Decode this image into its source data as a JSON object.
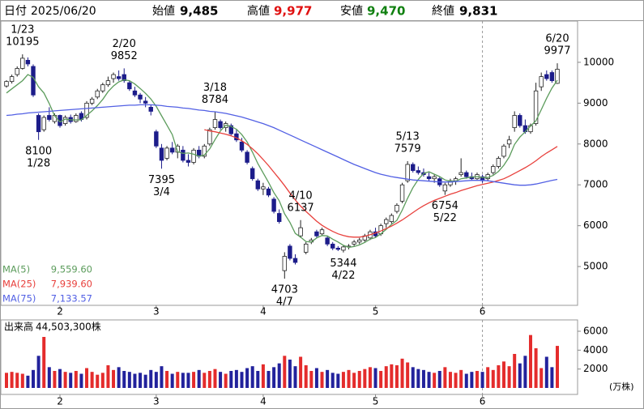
{
  "header": {
    "date_label": "日付",
    "date": "2025/06/20",
    "open_label": "始値",
    "open": "9,485",
    "high_label": "高値",
    "high": "9,977",
    "low_label": "安値",
    "low": "9,470",
    "close_label": "終値",
    "close": "9,831"
  },
  "chart_data": [
    {
      "type": "candlestick",
      "categories": [
        null,
        null,
        null,
        null,
        null,
        null,
        null,
        null,
        null,
        null,
        "2",
        null,
        null,
        null,
        null,
        null,
        null,
        null,
        null,
        null,
        null,
        null,
        null,
        null,
        null,
        null,
        null,
        null,
        "3",
        null,
        null,
        null,
        null,
        null,
        null,
        null,
        null,
        null,
        null,
        null,
        null,
        null,
        null,
        null,
        null,
        null,
        null,
        null,
        "4",
        null,
        null,
        null,
        null,
        null,
        null,
        null,
        null,
        null,
        null,
        null,
        null,
        null,
        null,
        null,
        null,
        null,
        null,
        null,
        null,
        "5",
        null,
        null,
        null,
        null,
        null,
        null,
        null,
        null,
        null,
        null,
        null,
        null,
        null,
        null,
        null,
        null,
        null,
        null,
        null,
        "6",
        null,
        null,
        null,
        null,
        null,
        null,
        null,
        null,
        null,
        null,
        null,
        null,
        null,
        null
      ],
      "open": [
        9420,
        9530,
        9700,
        9850,
        10050,
        9900,
        8700,
        8350,
        8700,
        8550,
        8700,
        8500,
        8650,
        8550,
        8750,
        8650,
        9000,
        9150,
        9300,
        9450,
        9600,
        9650,
        9700,
        9500,
        9300,
        9200,
        9050,
        8900,
        8300,
        7900,
        7650,
        7900,
        7800,
        7850,
        7600,
        7550,
        7850,
        7700,
        8000,
        8400,
        8550,
        8400,
        8450,
        8250,
        8050,
        7800,
        7400,
        7100,
        6900,
        6900,
        6650,
        6300,
        4900,
        5500,
        5200,
        5750,
        5350,
        5600,
        5850,
        5800,
        5700,
        5550,
        5450,
        5400,
        5480,
        5550,
        5600,
        5650,
        5700,
        5850,
        5800,
        6050,
        6100,
        6350,
        6600,
        7100,
        7500,
        7350,
        7300,
        7200,
        7150,
        7150,
        6850,
        7000,
        7100,
        7250,
        7300,
        7200,
        7150,
        7200,
        7150,
        7300,
        7450,
        7700,
        8000,
        8400,
        8700,
        8450,
        8300,
        8500,
        9400,
        9700,
        9750,
        9485
      ],
      "high": [
        9560,
        9700,
        9900,
        10195,
        10120,
        9950,
        8750,
        8700,
        8900,
        8750,
        8720,
        8700,
        8720,
        8750,
        8800,
        9050,
        9150,
        9350,
        9500,
        9650,
        9750,
        9800,
        9852,
        9550,
        9400,
        9250,
        9150,
        8950,
        8350,
        8000,
        7950,
        8050,
        8000,
        7950,
        7750,
        7900,
        7950,
        8000,
        8400,
        8784,
        8600,
        8550,
        8500,
        8350,
        8150,
        7850,
        7450,
        7150,
        7050,
        6950,
        6700,
        6400,
        5350,
        5550,
        5300,
        6137,
        5600,
        5700,
        5900,
        5950,
        5750,
        5600,
        5500,
        5520,
        5550,
        5650,
        5700,
        5800,
        5900,
        5950,
        6050,
        6200,
        6300,
        6550,
        7050,
        7579,
        7550,
        7450,
        7400,
        7300,
        7250,
        7200,
        7050,
        7150,
        7200,
        7650,
        7350,
        7300,
        7300,
        7250,
        7300,
        7500,
        7700,
        8000,
        8200,
        8800,
        8750,
        8600,
        8500,
        9500,
        9750,
        9800,
        9800,
        9977
      ],
      "low": [
        9380,
        9480,
        9650,
        9820,
        9900,
        9150,
        8100,
        8300,
        8550,
        8500,
        8400,
        8450,
        8500,
        8520,
        8550,
        8600,
        8950,
        9100,
        9250,
        9400,
        9500,
        9550,
        9500,
        9300,
        9150,
        9000,
        8900,
        8700,
        7900,
        7395,
        7600,
        7750,
        7650,
        7550,
        7450,
        7500,
        7650,
        7650,
        7950,
        8350,
        8350,
        8300,
        8200,
        8050,
        7800,
        7500,
        7100,
        6850,
        6750,
        6700,
        6300,
        6050,
        4703,
        5150,
        5050,
        5700,
        5300,
        5550,
        5700,
        5750,
        5500,
        5400,
        5380,
        5344,
        5420,
        5500,
        5550,
        5600,
        5650,
        5700,
        5750,
        5950,
        6050,
        6300,
        6550,
        7050,
        7300,
        7250,
        7200,
        7100,
        7050,
        6950,
        6754,
        6950,
        7000,
        7200,
        7150,
        7100,
        7100,
        7050,
        7100,
        7250,
        7400,
        7650,
        7900,
        8300,
        8400,
        8250,
        8250,
        8450,
        9300,
        9550,
        9500,
        9470
      ],
      "close": [
        9530,
        9650,
        9850,
        10100,
        9960,
        9200,
        8300,
        8650,
        8600,
        8700,
        8450,
        8650,
        8550,
        8700,
        8600,
        9000,
        9100,
        9300,
        9450,
        9550,
        9700,
        9600,
        9550,
        9350,
        9200,
        9100,
        9000,
        8800,
        7950,
        7600,
        7900,
        7800,
        7950,
        7600,
        7550,
        7850,
        7700,
        7950,
        8350,
        8600,
        8400,
        8500,
        8250,
        8100,
        7850,
        7550,
        7150,
        6900,
        6950,
        6750,
        6350,
        6100,
        5250,
        5200,
        5100,
        5950,
        5550,
        5650,
        5750,
        5900,
        5550,
        5450,
        5420,
        5480,
        5500,
        5600,
        5650,
        5750,
        5850,
        5750,
        6000,
        6150,
        6250,
        6500,
        7000,
        7500,
        7350,
        7300,
        7250,
        7150,
        7200,
        7000,
        7000,
        7100,
        7150,
        7300,
        7200,
        7150,
        7250,
        7100,
        7250,
        7450,
        7650,
        7950,
        8100,
        8700,
        8450,
        8300,
        8450,
        9300,
        9650,
        9600,
        9550,
        9831
      ],
      "up_color": "#ffffff",
      "down_color": "#1c1c8a",
      "outline_color": "#222222",
      "ylim": [
        4050,
        11010
      ],
      "yticks": [
        5000,
        6000,
        7000,
        8000,
        9000,
        10000
      ],
      "lines": [
        {
          "name": "MA(5)",
          "color": "#5c9c5c",
          "current": {
            "value": 9559.6,
            "label": "9,559.60"
          },
          "values": [
            9250,
            9350,
            9450,
            9550,
            9700,
            9630,
            9400,
            9250,
            8990,
            8690,
            8540,
            8610,
            8590,
            8590,
            8590,
            8700,
            8810,
            8940,
            9090,
            9280,
            9420,
            9520,
            9570,
            9550,
            9470,
            9360,
            9240,
            9100,
            8920,
            8690,
            8460,
            8230,
            7810,
            7770,
            7780,
            7750,
            7700,
            7730,
            7880,
            8110,
            8320,
            8460,
            8430,
            8360,
            8230,
            8050,
            7800,
            7520,
            7290,
            7060,
            6810,
            6610,
            6290,
            6080,
            5810,
            5720,
            5610,
            5600,
            5700,
            5760,
            5750,
            5670,
            5600,
            5520,
            5470,
            5490,
            5530,
            5590,
            5670,
            5710,
            5800,
            5910,
            6030,
            6130,
            6380,
            6670,
            6930,
            7130,
            7280,
            7320,
            7260,
            7200,
            7120,
            7090,
            7090,
            7150,
            7170,
            7190,
            7200,
            7180,
            7180,
            7230,
            7330,
            7480,
            7680,
            7990,
            8170,
            8300,
            8440,
            8570,
            8840,
            9120,
            9370,
            9559.6
          ]
        },
        {
          "name": "MA(25)",
          "color": "#e8403c",
          "current": {
            "value": 7939.6,
            "label": "7,939.60"
          },
          "values": [
            null,
            null,
            null,
            null,
            null,
            null,
            null,
            null,
            null,
            null,
            null,
            null,
            null,
            null,
            null,
            null,
            null,
            null,
            null,
            null,
            null,
            null,
            null,
            null,
            null,
            null,
            null,
            null,
            null,
            null,
            null,
            null,
            null,
            null,
            null,
            null,
            null,
            8350,
            8320,
            8300,
            8270,
            8240,
            8200,
            8150,
            8080,
            7990,
            7880,
            7760,
            7620,
            7470,
            7310,
            7150,
            6980,
            6800,
            6630,
            6480,
            6350,
            6230,
            6110,
            6010,
            5930,
            5860,
            5800,
            5760,
            5730,
            5720,
            5720,
            5740,
            5780,
            5820,
            5870,
            5930,
            5990,
            6060,
            6140,
            6230,
            6320,
            6410,
            6490,
            6560,
            6620,
            6670,
            6720,
            6770,
            6810,
            6860,
            6900,
            6940,
            6980,
            7010,
            7040,
            7070,
            7110,
            7150,
            7210,
            7280,
            7350,
            7420,
            7500,
            7590,
            7690,
            7780,
            7860,
            7939.6
          ]
        },
        {
          "name": "MA(75)",
          "color": "#5260e4",
          "current": {
            "value": 7133.57,
            "label": "7,133.57"
          },
          "values": [
            8700,
            8710,
            8730,
            8740,
            8760,
            8770,
            8780,
            8790,
            8800,
            8810,
            8820,
            8830,
            8840,
            8850,
            8860,
            8870,
            8880,
            8890,
            8900,
            8910,
            8920,
            8930,
            8940,
            8950,
            8950,
            8960,
            8960,
            8960,
            8950,
            8940,
            8920,
            8910,
            8900,
            8880,
            8870,
            8850,
            8830,
            8820,
            8800,
            8790,
            8770,
            8750,
            8720,
            8690,
            8660,
            8620,
            8580,
            8540,
            8500,
            8450,
            8400,
            8340,
            8280,
            8220,
            8160,
            8100,
            8040,
            7980,
            7920,
            7860,
            7800,
            7740,
            7680,
            7620,
            7560,
            7500,
            7450,
            7400,
            7350,
            7300,
            7260,
            7230,
            7200,
            7180,
            7160,
            7140,
            7120,
            7110,
            7100,
            7090,
            7080,
            7070,
            7070,
            7070,
            7080,
            7090,
            7100,
            7110,
            7110,
            7110,
            7100,
            7080,
            7060,
            7040,
            7020,
            7000,
            6990,
            6990,
            7000,
            7020,
            7050,
            7080,
            7110,
            7133.57
          ]
        }
      ],
      "annotations": [
        {
          "date": "1/23",
          "value": 10195
        },
        {
          "date": "1/28",
          "value": 8100
        },
        {
          "date": "2/20",
          "value": 9852
        },
        {
          "date": "3/4",
          "value": 7395
        },
        {
          "date": "3/18",
          "value": 8784
        },
        {
          "date": "4/7",
          "value": 4703
        },
        {
          "date": "4/10",
          "value": 6137
        },
        {
          "date": "4/22",
          "value": 5344
        },
        {
          "date": "5/13",
          "value": 7579
        },
        {
          "date": "5/22",
          "value": 6754
        },
        {
          "date": "6/20",
          "value": 9977
        }
      ]
    },
    {
      "type": "bar",
      "title": "出来高",
      "title_value": "44,503,300株",
      "unit": "(万株)",
      "up_color": "#e42c2c",
      "down_color": "#22229c",
      "values": [
        1600,
        1700,
        1600,
        1500,
        1300,
        1900,
        3400,
        5400,
        2200,
        1800,
        2000,
        1700,
        1600,
        1800,
        1500,
        2100,
        1700,
        1400,
        1600,
        2400,
        1900,
        2200,
        1800,
        1700,
        1500,
        1600,
        1400,
        1900,
        1700,
        2300,
        1800,
        1500,
        1700,
        1600,
        1600,
        1700,
        1900,
        1600,
        1800,
        2000,
        1700,
        1500,
        1800,
        1900,
        1700,
        2100,
        2300,
        1800,
        2500,
        1800,
        2200,
        2600,
        3400,
        3000,
        2300,
        3300,
        2400,
        1800,
        2100,
        1700,
        1900,
        1600,
        1500,
        1700,
        1900,
        1600,
        1800,
        2000,
        2200,
        2100,
        1800,
        2300,
        2500,
        2400,
        3100,
        2700,
        2200,
        2000,
        1900,
        1700,
        1600,
        1800,
        2200,
        1700,
        1600,
        1900,
        1500,
        1700,
        1800,
        1700,
        2200,
        1900,
        2400,
        2800,
        2300,
        3600,
        2600,
        3400,
        5600,
        4200,
        2100,
        3300,
        2200,
        4450.33
      ],
      "ylim": [
        0,
        7200
      ],
      "yticks": [
        2000,
        4000,
        6000
      ]
    }
  ]
}
